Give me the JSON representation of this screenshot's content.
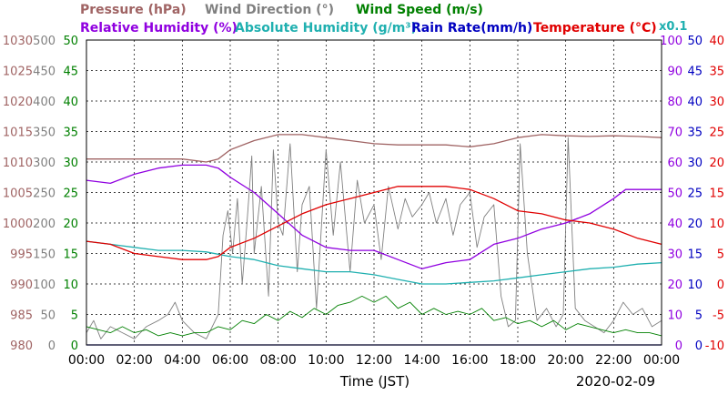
{
  "chart_data": {
    "type": "line",
    "date": "2020-02-09",
    "xlabel": "Time (JST)",
    "x_ticks": [
      "00:00",
      "02:00",
      "04:00",
      "06:00",
      "08:00",
      "10:00",
      "12:00",
      "14:00",
      "16:00",
      "18:00",
      "20:00",
      "22:00",
      "00:00"
    ],
    "legend_row1": [
      {
        "label": "Pressure (hPa)",
        "color": "#a06464"
      },
      {
        "label": "Wind Direction (°)",
        "color": "#808080"
      },
      {
        "label": "Wind Speed (m/s)",
        "color": "#008000"
      }
    ],
    "legend_row2": [
      {
        "label": "Relative Humidity (%)",
        "color": "#9000e0"
      },
      {
        "label": "Absolute Humidity (g/m³)",
        "color": "#20b0b0"
      },
      {
        "label": "Rain Rate(mm/h)",
        "color": "#0000c0"
      },
      {
        "label": "Temperature (°C)",
        "color": "#e00000"
      }
    ],
    "abs_humidity_scale_note": "x0.1",
    "axes": {
      "pressure": {
        "label": "hPa",
        "color": "#a06464",
        "ticks": [
          "1030",
          "1025",
          "1020",
          "1015",
          "1010",
          "1005",
          "1000",
          "995",
          "990",
          "985",
          "980"
        ],
        "range": [
          980,
          1030
        ]
      },
      "wind_direction": {
        "label": "°",
        "color": "#808080",
        "ticks": [
          "500",
          "450",
          "400",
          "350",
          "300",
          "250",
          "200",
          "150",
          "100",
          "50",
          "0"
        ],
        "range": [
          0,
          500
        ]
      },
      "wind_speed": {
        "label": "m/s",
        "color": "#008000",
        "ticks": [
          "50",
          "45",
          "40",
          "35",
          "30",
          "25",
          "20",
          "15",
          "10",
          "5",
          "0"
        ],
        "range": [
          0,
          50
        ]
      },
      "humidity": {
        "label": "%",
        "color": "#9000e0",
        "ticks": [
          "100",
          "90",
          "80",
          "70",
          "60",
          "50",
          "40",
          "30",
          "20",
          "10",
          "0"
        ],
        "range": [
          0,
          100
        ]
      },
      "rain_rate": {
        "label": "mm/h",
        "color": "#0000c0",
        "ticks": [
          "50",
          "45",
          "40",
          "35",
          "30",
          "25",
          "20",
          "15",
          "10",
          "5",
          "0"
        ],
        "range": [
          0,
          50
        ]
      },
      "temperature": {
        "label": "°C",
        "color": "#e00000",
        "ticks": [
          "40",
          "35",
          "30",
          "25",
          "20",
          "15",
          "10",
          "5",
          "0",
          "-5",
          "-10"
        ],
        "range": [
          -10,
          40
        ]
      }
    },
    "x_range_hours": [
      0,
      24
    ],
    "grid": true,
    "series": [
      {
        "name": "Pressure (hPa)",
        "axis": "pressure",
        "color": "#a06464",
        "x": [
          0,
          1,
          2,
          3,
          4,
          5,
          5.5,
          6,
          7,
          8,
          9,
          10,
          11,
          12,
          13,
          14,
          15,
          16,
          17,
          18,
          19,
          20,
          21,
          22,
          23,
          24
        ],
        "y": [
          1010.5,
          1010.5,
          1010.5,
          1010.5,
          1010.5,
          1010,
          1010.5,
          1012,
          1013.5,
          1014.5,
          1014.5,
          1014,
          1013.5,
          1013,
          1012.8,
          1012.8,
          1012.8,
          1012.5,
          1013,
          1014,
          1014.5,
          1014.3,
          1014.2,
          1014.3,
          1014.2,
          1014
        ]
      },
      {
        "name": "Relative Humidity (%)",
        "axis": "humidity",
        "color": "#9000e0",
        "x": [
          0,
          1,
          2,
          3,
          4,
          5,
          5.5,
          6,
          7,
          8,
          9,
          10,
          11,
          12,
          13,
          14,
          15,
          16,
          17,
          18,
          19,
          20,
          21,
          22,
          22.5,
          23,
          24
        ],
        "y": [
          54,
          53,
          56,
          58,
          59,
          59,
          58,
          55,
          50,
          43,
          36,
          32,
          31,
          31,
          28,
          25,
          27,
          28,
          33,
          35,
          38,
          40,
          43,
          48,
          51,
          51,
          51
        ]
      },
      {
        "name": "Absolute Humidity (g/m³)",
        "axis": "humidity",
        "color": "#20b0b0",
        "x": [
          0,
          1,
          2,
          3,
          4,
          5,
          6,
          7,
          8,
          9,
          10,
          11,
          12,
          13,
          14,
          15,
          16,
          17,
          18,
          19,
          20,
          21,
          22,
          23,
          24
        ],
        "y": [
          34,
          33,
          32,
          31,
          31,
          30.5,
          29,
          28,
          26,
          25,
          24,
          24,
          23,
          21.5,
          20,
          20,
          20.5,
          21,
          22,
          23,
          24,
          25,
          25.5,
          26.5,
          27
        ]
      },
      {
        "name": "Rain Rate(mm/h)",
        "axis": "rain_rate",
        "color": "#0000c0",
        "x": [
          0,
          24
        ],
        "y": [
          0,
          0
        ]
      },
      {
        "name": "Temperature (°C)",
        "axis": "temperature",
        "color": "#e00000",
        "x": [
          0,
          1,
          2,
          3,
          4,
          5,
          5.5,
          6,
          7,
          8,
          9,
          10,
          11,
          12,
          13,
          14,
          15,
          16,
          17,
          18,
          19,
          20,
          21,
          22,
          23,
          24
        ],
        "y": [
          7,
          6.5,
          5,
          4.5,
          4,
          4,
          4.5,
          6,
          7.5,
          9.5,
          11.5,
          13,
          14,
          15,
          16,
          16,
          16,
          15.5,
          14,
          12,
          11.5,
          10.5,
          10,
          9,
          7.5,
          6.5
        ]
      },
      {
        "name": "Wind Speed (m/s)",
        "axis": "wind_speed",
        "color": "#008000",
        "x": [
          0,
          0.5,
          1,
          1.5,
          2,
          2.5,
          3,
          3.5,
          4,
          4.5,
          5,
          5.5,
          6,
          6.5,
          7,
          7.5,
          8,
          8.5,
          9,
          9.5,
          10,
          10.5,
          11,
          11.5,
          12,
          12.5,
          13,
          13.5,
          14,
          14.5,
          15,
          15.5,
          16,
          16.5,
          17,
          17.5,
          18,
          18.5,
          19,
          19.5,
          20,
          20.5,
          21,
          21.5,
          22,
          22.5,
          23,
          23.5,
          24
        ],
        "y": [
          3,
          2.5,
          2,
          3,
          2,
          2.5,
          1.5,
          2,
          1.5,
          2,
          2,
          3,
          2.5,
          4,
          3.5,
          5,
          4,
          5.5,
          4.5,
          6,
          5,
          6.5,
          7,
          8,
          7,
          8,
          6,
          7,
          5,
          6,
          5,
          5.5,
          5,
          6,
          4,
          4.5,
          3.5,
          4,
          3,
          4,
          2.5,
          3.5,
          3,
          2.5,
          2,
          2.5,
          2,
          2,
          1.5
        ]
      },
      {
        "name": "Wind Direction (°)",
        "axis": "wind_direction",
        "color": "#808080",
        "x": [
          0,
          0.3,
          0.6,
          1,
          1.5,
          2,
          2.5,
          3,
          3.4,
          3.7,
          4,
          4.5,
          5,
          5.5,
          5.7,
          5.9,
          6.1,
          6.3,
          6.5,
          6.7,
          6.9,
          7,
          7.3,
          7.6,
          7.8,
          8,
          8.2,
          8.5,
          8.8,
          9,
          9.3,
          9.6,
          10,
          10.3,
          10.6,
          11,
          11.3,
          11.6,
          12,
          12.3,
          12.6,
          13,
          13.3,
          13.6,
          14,
          14.3,
          14.6,
          15,
          15.3,
          15.6,
          16,
          16.3,
          16.6,
          17,
          17.3,
          17.6,
          17.9,
          18.1,
          18.4,
          18.8,
          19.2,
          19.6,
          19.9,
          20.1,
          20.4,
          20.8,
          21.2,
          21.6,
          22,
          22.4,
          22.8,
          23.2,
          23.6,
          24
        ],
        "y": [
          20,
          40,
          10,
          30,
          20,
          10,
          30,
          40,
          50,
          70,
          40,
          20,
          10,
          50,
          180,
          220,
          150,
          240,
          100,
          200,
          310,
          150,
          260,
          80,
          320,
          200,
          180,
          330,
          120,
          230,
          260,
          60,
          320,
          180,
          300,
          120,
          270,
          200,
          230,
          140,
          260,
          190,
          240,
          210,
          230,
          250,
          200,
          240,
          180,
          230,
          250,
          160,
          210,
          230,
          80,
          30,
          40,
          330,
          150,
          40,
          60,
          30,
          50,
          340,
          60,
          40,
          30,
          20,
          40,
          70,
          50,
          60,
          30,
          40
        ]
      }
    ]
  }
}
